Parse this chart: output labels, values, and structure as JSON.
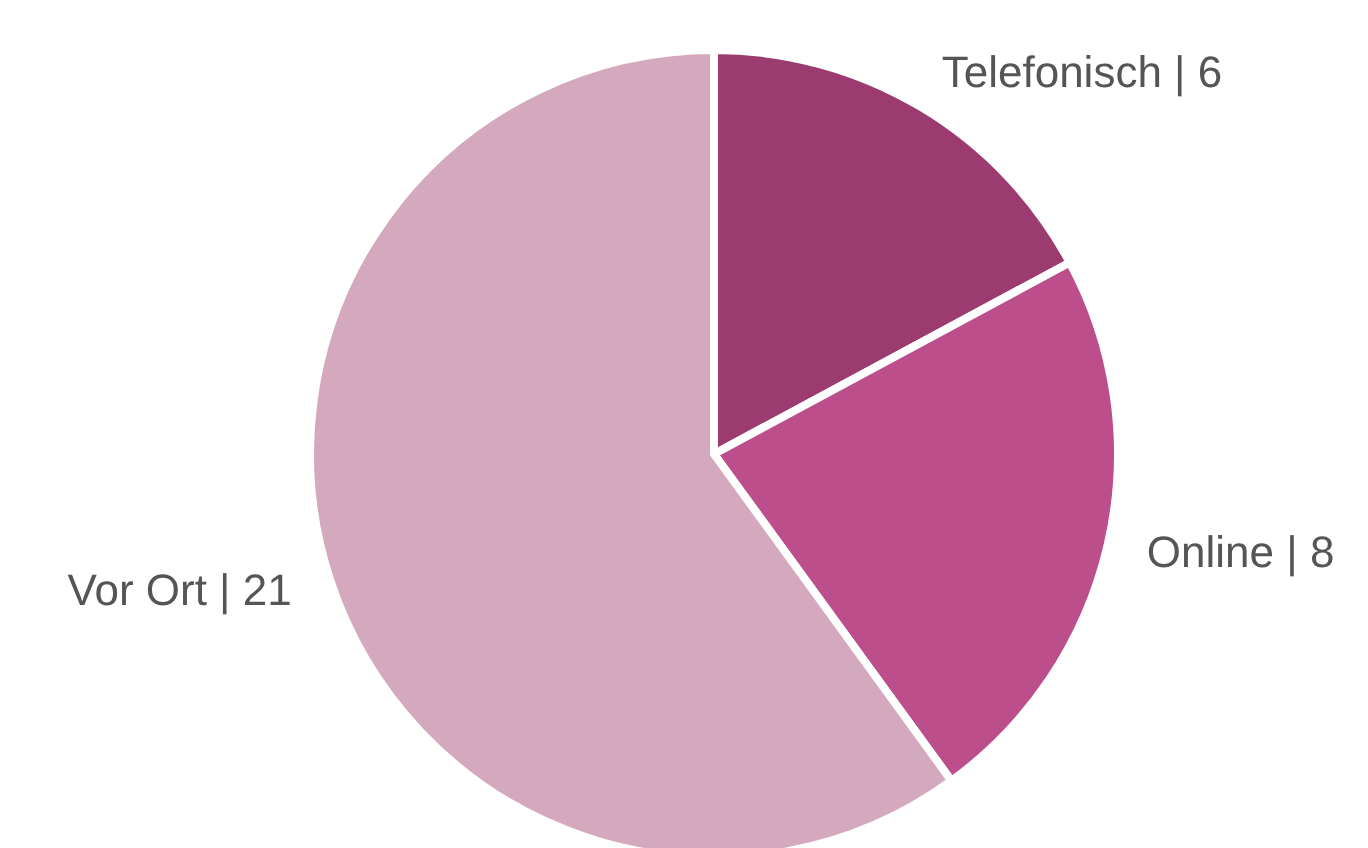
{
  "chart_data": {
    "type": "pie",
    "categories": [
      "Telefonisch | 6",
      "Online | 8",
      "Vor Ort | 21"
    ],
    "values": [
      6,
      8,
      21
    ],
    "colors": [
      "#9b3b6f",
      "#bb4e8b",
      "#d5a9bd"
    ]
  }
}
